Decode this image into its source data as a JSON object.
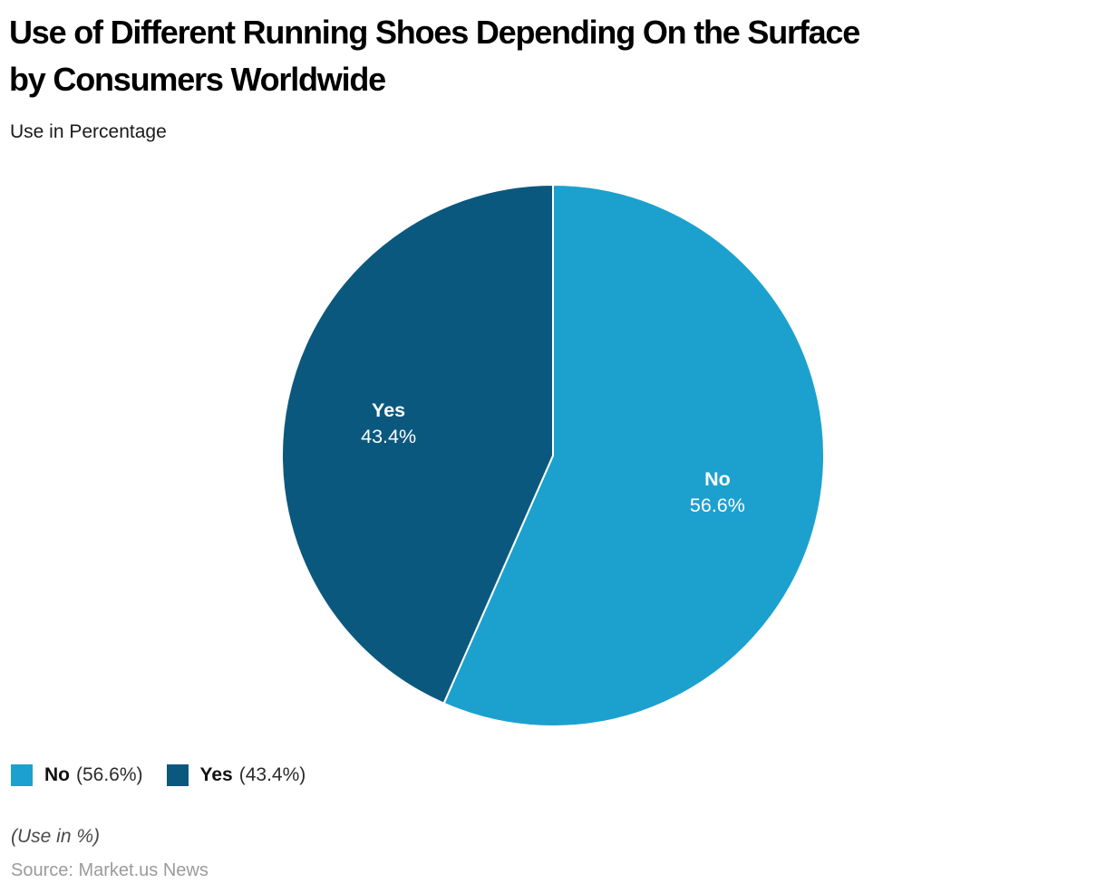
{
  "header": {
    "title_line1": "Use of Different Running Shoes Depending On the Surface",
    "title_line2": "by Consumers Worldwide",
    "subtitle": "Use in Percentage"
  },
  "chart_data": {
    "type": "pie",
    "title": "Use of Different Running Shoes Depending On the Surface by Consumers Worldwide",
    "subtitle": "Use in Percentage",
    "unit": "%",
    "start_angle_deg": 0,
    "direction": "clockwise",
    "slice_label_radius_ratio": 0.62,
    "slices": [
      {
        "label": "No",
        "value": 56.6,
        "display": "56.6%",
        "color": "#1CA1CE"
      },
      {
        "label": "Yes",
        "value": 43.4,
        "display": "43.4%",
        "color": "#0B587E"
      }
    ],
    "legend_position": "bottom-left"
  },
  "legend": {
    "items": [
      {
        "label": "No",
        "value_text": "(56.6%)",
        "color": "#1CA1CE"
      },
      {
        "label": "Yes",
        "value_text": "(43.4%)",
        "color": "#0B587E"
      }
    ]
  },
  "footer": {
    "note": "(Use in %)",
    "source": "Source: Market.us News"
  },
  "colors": {
    "background": "#ffffff",
    "slice_divider": "#ffffff",
    "slice_label_text": "#ffffff"
  }
}
